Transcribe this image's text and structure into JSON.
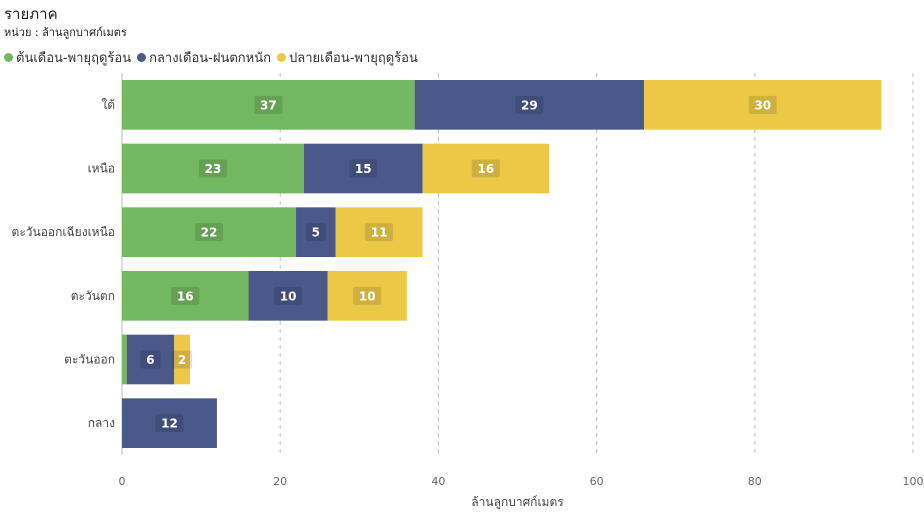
{
  "header": {
    "title": "รายภาค",
    "subtitle": "หน่วย : ล้านลูกบาศก์เมตร"
  },
  "chart_data": {
    "type": "bar",
    "orientation": "horizontal",
    "stacked": true,
    "categories": [
      "ใต้",
      "เหนือ",
      "ตะวันออกเฉียงเหนือ",
      "ตะวันตก",
      "ตะวันออก",
      "กลาง"
    ],
    "series": [
      {
        "name": "ต้นเดือน-พายุฤดูร้อน",
        "color": "#73B761",
        "values": [
          37,
          23,
          22,
          16,
          0.6,
          0
        ]
      },
      {
        "name": "กลางเดือน-ฝนตกหนัก",
        "color": "#4A588A",
        "values": [
          29,
          15,
          5,
          10,
          6,
          12
        ]
      },
      {
        "name": "ปลายเดือน-พายุฤดูร้อน",
        "color": "#ECC846",
        "values": [
          30,
          16,
          11,
          10,
          2,
          0
        ]
      }
    ],
    "data_labels": [
      [
        "37",
        "23",
        "22",
        "16",
        "",
        ""
      ],
      [
        "29",
        "15",
        "5",
        "10",
        "6",
        "12"
      ],
      [
        "30",
        "16",
        "11",
        "10",
        "2",
        ""
      ]
    ],
    "xlim": [
      0,
      100
    ],
    "x_ticks": [
      0,
      20,
      40,
      60,
      80,
      100
    ],
    "xlabel": "ล้านลูกบาศก์เมตร",
    "ylabel": "",
    "grid": "vertical-dashed",
    "legend_position": "top-left"
  }
}
